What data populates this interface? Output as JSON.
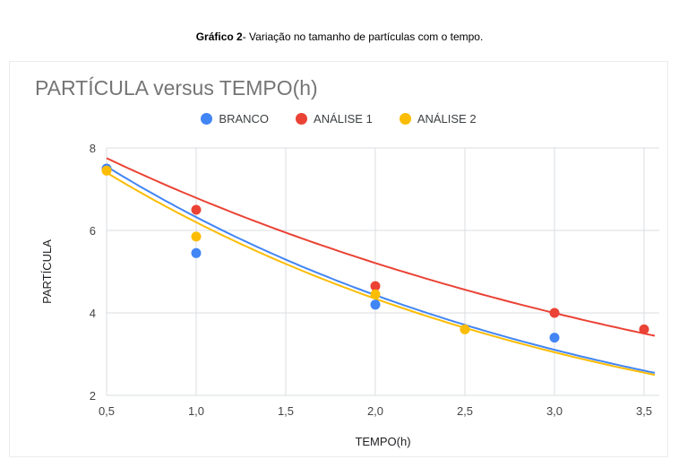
{
  "caption": {
    "bold": "Gráfico 2",
    "rest": "- Variação no tamanho de partículas com o tempo."
  },
  "chart_data": {
    "type": "scatter",
    "title": "PARTÍCULA versus TEMPO(h)",
    "xlabel": "TEMPO(h)",
    "ylabel": "PARTÍCULA",
    "xlim": [
      0.5,
      3.5
    ],
    "ylim": [
      2,
      8
    ],
    "xticks": [
      0.5,
      1.0,
      1.5,
      2.0,
      2.5,
      3.0,
      3.5
    ],
    "xtick_labels": [
      "0,5",
      "1,0",
      "1,5",
      "2,0",
      "2,5",
      "3,0",
      "3,5"
    ],
    "yticks": [
      2,
      4,
      6,
      8
    ],
    "ytick_labels": [
      "2",
      "4",
      "6",
      "8"
    ],
    "grid": true,
    "legend_position": "top",
    "trendline_type": "exponential",
    "colors": {
      "grid": "#dadce0",
      "tick_text": "#444444",
      "axis_title_text": "#202124",
      "title_text": "#757575"
    },
    "series": [
      {
        "name": "BRANCO",
        "color": "#4285F4",
        "points": [
          [
            0.5,
            7.5
          ],
          [
            1.0,
            5.45
          ],
          [
            2.0,
            4.2
          ],
          [
            3.0,
            3.4
          ]
        ],
        "trend": {
          "a": 9.02,
          "b": -0.3554
        }
      },
      {
        "name": "ANÁLISE 1",
        "color": "#EA4335",
        "points": [
          [
            1.0,
            6.5
          ],
          [
            2.0,
            4.65
          ],
          [
            3.0,
            4.0
          ],
          [
            3.5,
            3.6
          ]
        ],
        "trend": {
          "a": 8.85,
          "b": -0.265
        }
      },
      {
        "name": "ANÁLISE 2",
        "color": "#FBBC04",
        "points": [
          [
            0.5,
            7.45
          ],
          [
            1.0,
            5.85
          ],
          [
            2.0,
            4.45
          ],
          [
            2.5,
            3.6
          ]
        ],
        "trend": {
          "a": 8.84,
          "b": -0.3552
        }
      }
    ]
  }
}
